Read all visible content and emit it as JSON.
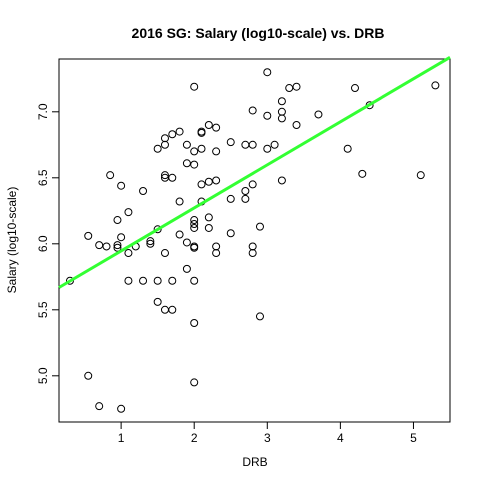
{
  "chart_data": {
    "type": "scatter",
    "title": "2016 SG: Salary (log10-scale) vs. DRB",
    "xlabel": "DRB",
    "ylabel": "Salary (log10-scale)",
    "xlim": [
      0.15,
      5.5
    ],
    "ylim": [
      4.65,
      7.4
    ],
    "xticks": [
      1,
      2,
      3,
      4,
      5
    ],
    "yticks": [
      5.0,
      5.5,
      6.0,
      6.5,
      7.0
    ],
    "ytick_labels": [
      "5.0",
      "5.5",
      "6.0",
      "6.5",
      "7.0"
    ],
    "grid": false,
    "legend": "none",
    "point_color": "#000000",
    "line_color": "#33ff33",
    "fit_line": {
      "intercept": 5.62,
      "slope": 0.326
    },
    "points": [
      [
        2.0,
        7.19
      ],
      [
        3.0,
        7.3
      ],
      [
        3.3,
        7.18
      ],
      [
        3.4,
        7.19
      ],
      [
        5.3,
        7.2
      ],
      [
        4.2,
        7.18
      ],
      [
        3.2,
        7.08
      ],
      [
        2.8,
        7.01
      ],
      [
        3.2,
        7.0
      ],
      [
        3.0,
        6.97
      ],
      [
        3.2,
        6.95
      ],
      [
        3.7,
        6.98
      ],
      [
        4.4,
        7.05
      ],
      [
        2.2,
        6.9
      ],
      [
        2.3,
        6.88
      ],
      [
        3.4,
        6.9
      ],
      [
        1.8,
        6.85
      ],
      [
        1.7,
        6.83
      ],
      [
        2.1,
        6.85
      ],
      [
        2.1,
        6.84
      ],
      [
        1.6,
        6.8
      ],
      [
        2.5,
        6.77
      ],
      [
        1.6,
        6.75
      ],
      [
        1.9,
        6.75
      ],
      [
        2.7,
        6.75
      ],
      [
        2.8,
        6.75
      ],
      [
        1.5,
        6.72
      ],
      [
        2.1,
        6.72
      ],
      [
        2.0,
        6.7
      ],
      [
        2.3,
        6.7
      ],
      [
        3.1,
        6.75
      ],
      [
        3.0,
        6.72
      ],
      [
        4.1,
        6.72
      ],
      [
        1.9,
        6.61
      ],
      [
        2.0,
        6.6
      ],
      [
        0.85,
        6.52
      ],
      [
        1.6,
        6.52
      ],
      [
        1.6,
        6.5
      ],
      [
        1.7,
        6.5
      ],
      [
        4.3,
        6.53
      ],
      [
        5.1,
        6.52
      ],
      [
        2.2,
        6.47
      ],
      [
        2.3,
        6.48
      ],
      [
        2.1,
        6.45
      ],
      [
        2.8,
        6.45
      ],
      [
        3.2,
        6.48
      ],
      [
        1.0,
        6.44
      ],
      [
        1.3,
        6.4
      ],
      [
        2.7,
        6.4
      ],
      [
        2.5,
        6.34
      ],
      [
        2.7,
        6.34
      ],
      [
        1.8,
        6.32
      ],
      [
        2.1,
        6.32
      ],
      [
        1.1,
        6.24
      ],
      [
        2.2,
        6.2
      ],
      [
        0.95,
        6.18
      ],
      [
        2.0,
        6.18
      ],
      [
        2.0,
        6.15
      ],
      [
        2.2,
        6.12
      ],
      [
        2.9,
        6.13
      ],
      [
        1.5,
        6.11
      ],
      [
        2.0,
        6.12
      ],
      [
        2.5,
        6.08
      ],
      [
        0.55,
        6.06
      ],
      [
        1.0,
        6.05
      ],
      [
        1.8,
        6.07
      ],
      [
        1.4,
        6.02
      ],
      [
        1.9,
        6.01
      ],
      [
        1.4,
        6.0
      ],
      [
        0.7,
        5.99
      ],
      [
        0.8,
        5.98
      ],
      [
        0.95,
        5.99
      ],
      [
        0.95,
        5.97
      ],
      [
        1.2,
        5.98
      ],
      [
        2.0,
        5.98
      ],
      [
        2.0,
        5.97
      ],
      [
        2.3,
        5.98
      ],
      [
        2.8,
        5.98
      ],
      [
        1.1,
        5.93
      ],
      [
        1.6,
        5.93
      ],
      [
        2.3,
        5.93
      ],
      [
        2.8,
        5.93
      ],
      [
        0.3,
        5.72
      ],
      [
        1.1,
        5.72
      ],
      [
        1.3,
        5.72
      ],
      [
        1.5,
        5.72
      ],
      [
        1.7,
        5.72
      ],
      [
        2.0,
        5.72
      ],
      [
        1.9,
        5.81
      ],
      [
        1.5,
        5.56
      ],
      [
        1.6,
        5.5
      ],
      [
        1.7,
        5.5
      ],
      [
        2.9,
        5.45
      ],
      [
        2.0,
        5.4
      ],
      [
        0.55,
        5.0
      ],
      [
        2.0,
        4.95
      ],
      [
        0.7,
        4.77
      ],
      [
        1.0,
        4.75
      ]
    ]
  }
}
